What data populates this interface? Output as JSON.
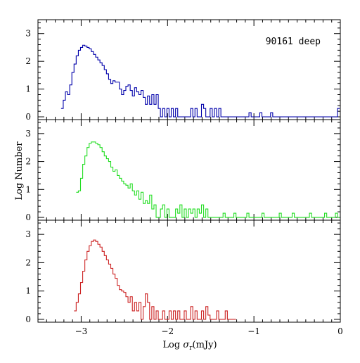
{
  "chart_data": {
    "type": "histogram",
    "annotation": "90161 deep",
    "xlabel_prefix": "Log ",
    "xlabel_sigma": "σ",
    "xlabel_sub": "r",
    "xlabel_unit": "(mJy)",
    "ylabel": "Log Number",
    "xlim": [
      -3.5,
      0
    ],
    "ylim": [
      -0.1,
      3.5
    ],
    "x_ticks": [
      -3,
      -2,
      -1,
      0
    ],
    "x_tick_labels": [
      "−3",
      "−2",
      "−1",
      "0"
    ],
    "y_ticks": [
      0,
      1,
      2,
      3
    ],
    "y_tick_labels": [
      "0",
      "1",
      "2",
      "3"
    ],
    "bin_width": 0.025,
    "panels": [
      {
        "color": "#0000aa",
        "x": [
          -3.22,
          -3.195,
          -3.17,
          -3.145,
          -3.12,
          -3.095,
          -3.07,
          -3.045,
          -3.02,
          -2.995,
          -2.97,
          -2.945,
          -2.92,
          -2.895,
          -2.87,
          -2.845,
          -2.82,
          -2.795,
          -2.77,
          -2.745,
          -2.72,
          -2.695,
          -2.67,
          -2.645,
          -2.62,
          -2.595,
          -2.57,
          -2.545,
          -2.52,
          -2.495,
          -2.47,
          -2.445,
          -2.42,
          -2.395,
          -2.37,
          -2.345,
          -2.32,
          -2.295,
          -2.27,
          -2.245,
          -2.22,
          -2.195,
          -2.17,
          -2.145,
          -2.12,
          -2.095,
          -2.07,
          -2.045,
          -2.02,
          -1.995,
          -1.97,
          -1.945,
          -1.92,
          -1.895,
          -1.87,
          -1.845,
          -1.82,
          -1.795,
          -1.77,
          -1.745,
          -1.72,
          -1.695,
          -1.67,
          -1.645,
          -1.62,
          -1.595,
          -1.57,
          -1.545,
          -1.52,
          -1.495,
          -1.47,
          -1.445,
          -1.42,
          -1.395,
          -1.37,
          -1.345,
          -1.32,
          -1.295,
          -1.27,
          -1.245,
          -1.22,
          -1.195,
          -1.17,
          -1.145,
          -1.12,
          -1.095,
          -1.07,
          -1.045,
          -1.02,
          -0.995,
          -0.97,
          -0.945,
          -0.92,
          -0.895,
          -0.87,
          -0.845,
          -0.82,
          -0.795,
          -0.77,
          -0.745,
          -0.72,
          -0.695,
          -0.67,
          -0.645,
          -0.62,
          -0.595,
          -0.57,
          -0.545,
          -0.52,
          -0.495,
          -0.47,
          -0.445,
          -0.42,
          -0.395,
          -0.37,
          -0.345,
          -0.32,
          -0.295,
          -0.27,
          -0.245,
          -0.22,
          -0.195,
          -0.17,
          -0.145,
          -0.12,
          -0.095,
          -0.07,
          -0.045,
          -0.02
        ],
        "y": [
          0.3,
          0.6,
          0.9,
          0.8,
          1.15,
          1.6,
          1.9,
          2.2,
          2.4,
          2.5,
          2.58,
          2.55,
          2.5,
          2.45,
          2.35,
          2.25,
          2.15,
          2.05,
          1.95,
          1.85,
          1.7,
          1.55,
          1.35,
          1.2,
          1.3,
          1.25,
          1.25,
          1.0,
          0.8,
          0.95,
          1.1,
          1.15,
          0.95,
          0.75,
          1.05,
          0.9,
          0.8,
          0.95,
          0.7,
          0.45,
          0.75,
          0.45,
          0.8,
          0.45,
          0.8,
          0.3,
          0.0,
          0.3,
          0.0,
          0.3,
          0.0,
          0.3,
          0.0,
          0.3,
          0.0,
          0.0,
          0.0,
          0.0,
          0.0,
          0.0,
          0.3,
          0.0,
          0.3,
          0.0,
          0.0,
          0.45,
          0.3,
          0.0,
          0.0,
          0.3,
          0.0,
          0.3,
          0.0,
          0.3,
          0.0,
          0.0,
          0.0,
          0.0,
          0.0,
          0.0,
          0.0,
          0.0,
          0.0,
          0.0,
          0.0,
          0.0,
          0.0,
          0.15,
          0.0,
          0.0,
          0.0,
          0.0,
          0.15,
          0.0,
          0.0,
          0.0,
          0.0,
          0.15,
          0.0,
          0.0,
          0.0,
          0.0,
          0.0,
          0.0,
          0.0,
          0.0,
          0.0,
          0.0,
          0.0,
          0.0,
          0.0,
          0.0,
          0.0,
          0.0,
          0.0,
          0.0,
          0.0,
          0.0,
          0.0,
          0.0,
          0.0,
          0.0,
          0.0,
          0.0,
          0.0,
          0.0,
          0.0,
          0.0,
          0.3
        ]
      },
      {
        "color": "#22dd22",
        "x": [
          -3.045,
          -3.02,
          -2.995,
          -2.97,
          -2.945,
          -2.92,
          -2.895,
          -2.87,
          -2.845,
          -2.82,
          -2.795,
          -2.77,
          -2.745,
          -2.72,
          -2.695,
          -2.67,
          -2.645,
          -2.62,
          -2.595,
          -2.57,
          -2.545,
          -2.52,
          -2.495,
          -2.47,
          -2.445,
          -2.42,
          -2.395,
          -2.37,
          -2.345,
          -2.32,
          -2.295,
          -2.27,
          -2.245,
          -2.22,
          -2.195,
          -2.17,
          -2.145,
          -2.12,
          -2.095,
          -2.07,
          -2.045,
          -2.02,
          -1.995,
          -1.97,
          -1.945,
          -1.92,
          -1.895,
          -1.87,
          -1.845,
          -1.82,
          -1.795,
          -1.77,
          -1.745,
          -1.72,
          -1.695,
          -1.67,
          -1.645,
          -1.62,
          -1.595,
          -1.57,
          -1.545,
          -1.52,
          -1.495,
          -1.47,
          -1.445,
          -1.42,
          -1.395,
          -1.37,
          -1.345,
          -1.32,
          -1.295,
          -1.27,
          -1.245,
          -1.22,
          -1.195,
          -1.17,
          -1.145,
          -1.12,
          -1.095,
          -1.07,
          -1.045,
          -1.02,
          -0.995,
          -0.97,
          -0.945,
          -0.92,
          -0.895,
          -0.87,
          -0.845,
          -0.82,
          -0.795,
          -0.77,
          -0.745,
          -0.72,
          -0.695,
          -0.67,
          -0.645,
          -0.62,
          -0.595,
          -0.57,
          -0.545,
          -0.52,
          -0.495,
          -0.47,
          -0.445,
          -0.42,
          -0.395,
          -0.37,
          -0.345,
          -0.32,
          -0.295,
          -0.27,
          -0.245,
          -0.22,
          -0.195,
          -0.17,
          -0.145,
          -0.12,
          -0.095,
          -0.07,
          -0.045,
          -0.02
        ],
        "y": [
          0.9,
          0.95,
          1.4,
          1.9,
          2.2,
          2.5,
          2.65,
          2.7,
          2.7,
          2.65,
          2.6,
          2.5,
          2.35,
          2.2,
          2.1,
          2.0,
          1.8,
          1.65,
          1.7,
          1.5,
          1.4,
          1.3,
          1.2,
          1.15,
          1.05,
          1.2,
          0.95,
          0.8,
          0.95,
          0.65,
          0.9,
          0.5,
          0.6,
          0.5,
          0.8,
          0.3,
          0.45,
          0.0,
          0.0,
          0.3,
          0.45,
          0.0,
          0.3,
          0.0,
          0.0,
          0.0,
          0.3,
          0.15,
          0.45,
          0.0,
          0.3,
          0.0,
          0.3,
          0.15,
          0.3,
          0.0,
          0.3,
          0.15,
          0.45,
          0.0,
          0.3,
          0.0,
          0.0,
          0.0,
          0.0,
          0.0,
          0.0,
          0.0,
          0.15,
          0.0,
          0.0,
          0.0,
          0.0,
          0.15,
          0.0,
          0.0,
          0.0,
          0.0,
          0.0,
          0.15,
          0.0,
          0.0,
          0.0,
          0.0,
          0.0,
          0.0,
          0.15,
          0.0,
          0.0,
          0.0,
          0.0,
          0.0,
          0.0,
          0.0,
          0.15,
          0.0,
          0.0,
          0.0,
          0.0,
          0.0,
          0.15,
          0.0,
          0.0,
          0.0,
          0.0,
          0.0,
          0.0,
          0.0,
          0.15,
          0.0,
          0.0,
          0.0,
          0.0,
          0.0,
          0.0,
          0.15,
          0.0,
          0.0,
          0.0,
          0.0,
          0.15,
          0.0
        ]
      },
      {
        "color": "#cc2222",
        "x": [
          -3.07,
          -3.045,
          -3.02,
          -2.995,
          -2.97,
          -2.945,
          -2.92,
          -2.895,
          -2.87,
          -2.845,
          -2.82,
          -2.795,
          -2.77,
          -2.745,
          -2.72,
          -2.695,
          -2.67,
          -2.645,
          -2.62,
          -2.595,
          -2.57,
          -2.545,
          -2.52,
          -2.495,
          -2.47,
          -2.445,
          -2.42,
          -2.395,
          -2.37,
          -2.345,
          -2.32,
          -2.295,
          -2.27,
          -2.245,
          -2.22,
          -2.195,
          -2.17,
          -2.145,
          -2.12,
          -2.095,
          -2.07,
          -2.045,
          -2.02,
          -1.995,
          -1.97,
          -1.945,
          -1.92,
          -1.895,
          -1.87,
          -1.845,
          -1.82,
          -1.795,
          -1.77,
          -1.745,
          -1.72,
          -1.695,
          -1.67,
          -1.645,
          -1.62,
          -1.595,
          -1.57,
          -1.545,
          -1.52,
          -1.495,
          -1.47,
          -1.445,
          -1.42,
          -1.395,
          -1.37,
          -1.345,
          -1.32,
          -1.295,
          -1.27,
          -1.245,
          -1.22
        ],
        "y": [
          0.3,
          0.6,
          0.9,
          1.3,
          1.7,
          2.1,
          2.4,
          2.6,
          2.75,
          2.8,
          2.75,
          2.65,
          2.55,
          2.4,
          2.25,
          2.1,
          1.95,
          1.8,
          1.6,
          1.45,
          1.2,
          1.05,
          1.0,
          0.95,
          0.8,
          0.6,
          0.8,
          0.3,
          0.6,
          0.3,
          0.6,
          0.0,
          0.45,
          0.9,
          0.6,
          0.0,
          0.45,
          0.0,
          0.3,
          0.0,
          0.0,
          0.3,
          0.0,
          0.0,
          0.3,
          0.0,
          0.3,
          0.0,
          0.3,
          0.0,
          0.0,
          0.3,
          0.0,
          0.0,
          0.45,
          0.0,
          0.3,
          0.0,
          0.0,
          0.3,
          0.0,
          0.45,
          0.15,
          0.0,
          0.0,
          0.0,
          0.3,
          0.0,
          0.0,
          0.0,
          0.3,
          0.0,
          0.0,
          0.0,
          0.0
        ]
      }
    ]
  }
}
